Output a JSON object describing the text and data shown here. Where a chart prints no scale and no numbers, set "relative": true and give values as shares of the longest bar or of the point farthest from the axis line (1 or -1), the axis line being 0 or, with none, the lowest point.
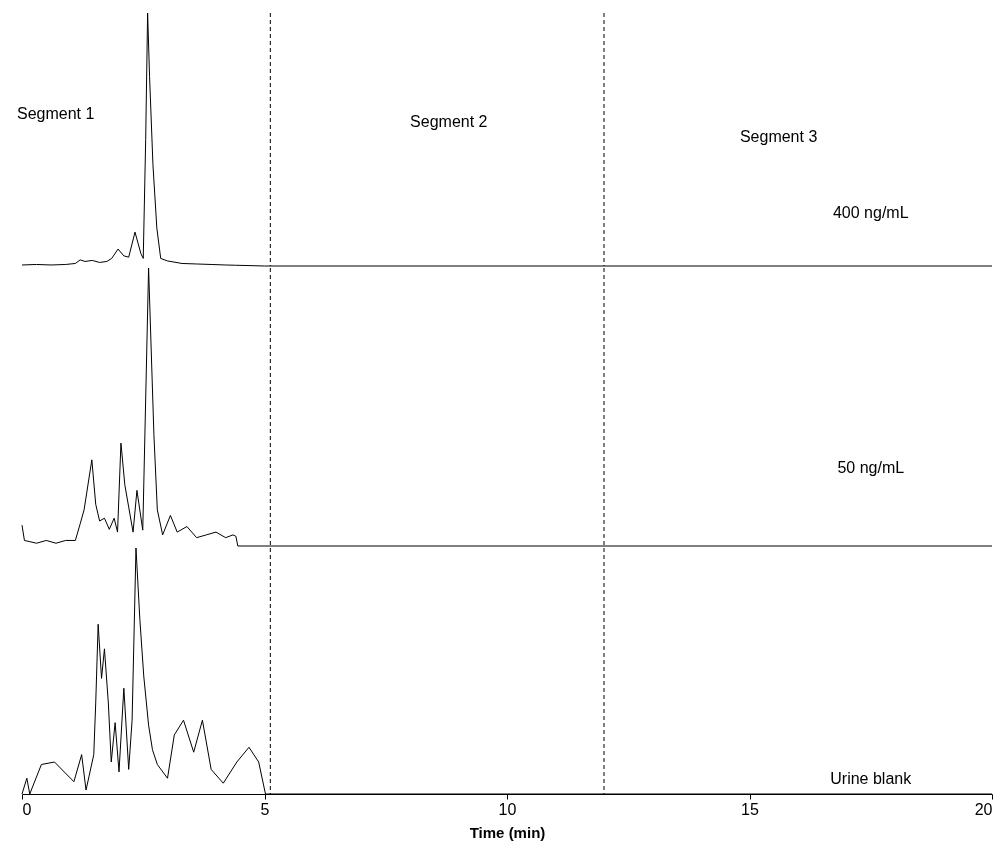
{
  "chart_data": [
    {
      "type": "line",
      "relative": true,
      "xlim": [
        0,
        20
      ],
      "xticks": [
        0,
        5,
        10,
        15,
        20
      ],
      "tick_labels": false,
      "line_style": "solid",
      "annotations": [
        "Segment 1",
        "Segment 2",
        "Segment 3"
      ],
      "ref_lines": [
        {
          "axis": "x",
          "value": 5.12,
          "color": "#000000",
          "line_style": "dashed"
        },
        {
          "axis": "x",
          "value": 12,
          "color": "#000000",
          "line_style": "dashed"
        }
      ],
      "x": [
        0,
        0.3,
        0.6,
        0.9,
        1.1,
        1.2,
        1.3,
        1.45,
        1.6,
        1.75,
        1.85,
        1.98,
        2.1,
        2.2,
        2.33,
        2.45,
        2.5,
        2.55,
        2.59,
        2.63,
        2.7,
        2.78,
        2.86,
        3,
        3.3,
        3.6,
        3.9,
        4.2,
        4.4,
        5,
        20
      ],
      "series": [
        {
          "name": "400 ng/mL",
          "color": "#000000",
          "values": [
            0.004,
            0.006,
            0.004,
            0.006,
            0.01,
            0.024,
            0.018,
            0.022,
            0.014,
            0.018,
            0.03,
            0.067,
            0.04,
            0.035,
            0.134,
            0.05,
            0.03,
            0.5,
            1.0,
            0.75,
            0.4,
            0.15,
            0.03,
            0.02,
            0.01,
            0.008,
            0.006,
            0.004,
            0.003,
            0,
            0
          ]
        }
      ]
    },
    {
      "type": "line",
      "relative": true,
      "xlim": [
        0,
        20
      ],
      "xticks": [
        0,
        5,
        10,
        15,
        20
      ],
      "tick_labels": false,
      "line_style": "solid",
      "ref_lines": [
        {
          "axis": "x",
          "value": 5.12,
          "color": "#000000",
          "line_style": "dashed"
        },
        {
          "axis": "x",
          "value": 12,
          "color": "#000000",
          "line_style": "dashed"
        }
      ],
      "x": [
        0,
        0.05,
        0.3,
        0.5,
        0.7,
        0.9,
        1.1,
        1.2,
        1.28,
        1.44,
        1.52,
        1.6,
        1.7,
        1.8,
        1.9,
        1.97,
        2.04,
        2.12,
        2.2,
        2.29,
        2.37,
        2.49,
        2.61,
        2.72,
        2.79,
        2.9,
        3.06,
        3.2,
        3.4,
        3.6,
        3.8,
        4.0,
        4.2,
        4.35,
        4.41,
        4.45,
        20
      ],
      "series": [
        {
          "name": "50 ng/mL",
          "color": "#000000",
          "values": [
            0.075,
            0.02,
            0.01,
            0.02,
            0.01,
            0.02,
            0.02,
            0.08,
            0.13,
            0.31,
            0.15,
            0.09,
            0.1,
            0.06,
            0.1,
            0.05,
            0.37,
            0.22,
            0.14,
            0.05,
            0.2,
            0.057,
            1.0,
            0.4,
            0.13,
            0.04,
            0.11,
            0.05,
            0.07,
            0.03,
            0.04,
            0.05,
            0.03,
            0.04,
            0.035,
            0,
            0
          ]
        }
      ]
    },
    {
      "type": "line",
      "relative": true,
      "xlim": [
        0,
        20
      ],
      "xticks": [
        0,
        5,
        10,
        15,
        20
      ],
      "tick_labels": "x",
      "xlabel": "Time (min)",
      "line_style": "solid",
      "ref_lines": [
        {
          "axis": "x",
          "value": 5.12,
          "color": "#000000",
          "line_style": "dashed"
        },
        {
          "axis": "x",
          "value": 12,
          "color": "#000000",
          "line_style": "dashed"
        }
      ],
      "x": [
        0,
        0.1,
        0.16,
        0.4,
        0.67,
        1.07,
        1.23,
        1.32,
        1.48,
        1.52,
        1.57,
        1.64,
        1.7,
        1.78,
        1.84,
        1.92,
        2.0,
        2.1,
        2.2,
        2.27,
        2.35,
        2.43,
        2.51,
        2.61,
        2.69,
        2.79,
        3.0,
        3.14,
        3.33,
        3.54,
        3.72,
        3.9,
        4.15,
        4.43,
        4.68,
        4.88,
        5.02,
        20
      ],
      "series": [
        {
          "name": "Urine blank",
          "color": "#000000",
          "values": [
            0,
            0.064,
            0,
            0.12,
            0.13,
            0.05,
            0.16,
            0.016,
            0.16,
            0.37,
            0.69,
            0.47,
            0.59,
            0.37,
            0.13,
            0.29,
            0.09,
            0.43,
            0.1,
            0.3,
            1.0,
            0.71,
            0.48,
            0.28,
            0.18,
            0.12,
            0.064,
            0.24,
            0.3,
            0.17,
            0.3,
            0.1,
            0.044,
            0.13,
            0.19,
            0.13,
            0,
            0
          ]
        }
      ]
    }
  ]
}
